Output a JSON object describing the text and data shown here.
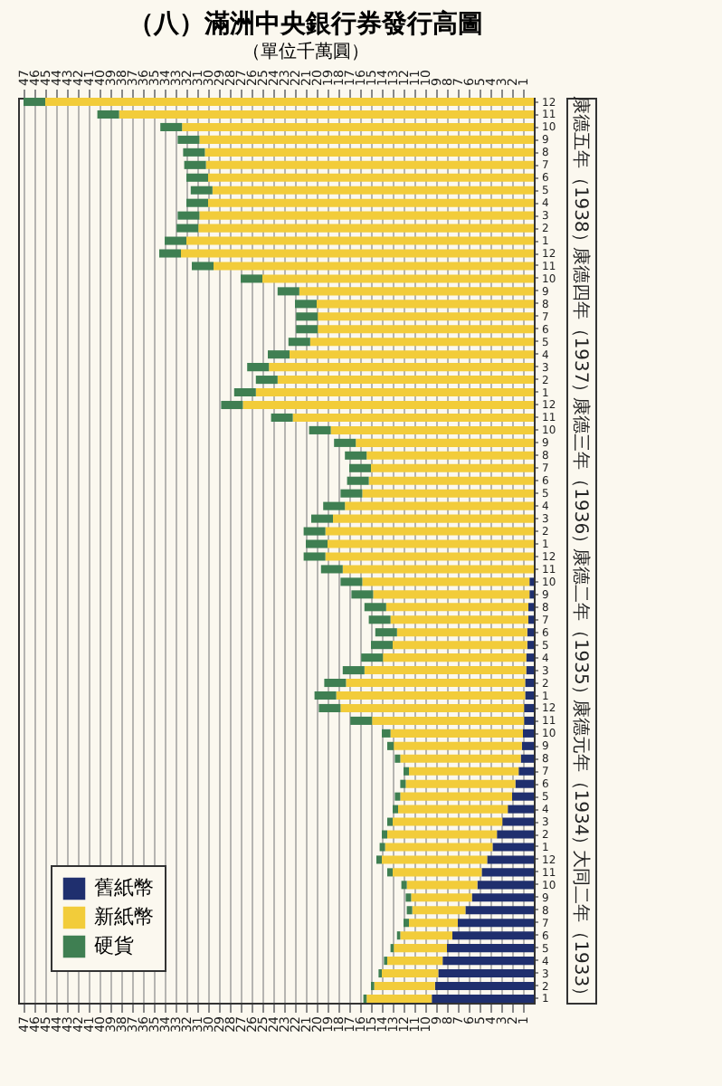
{
  "chart_data": {
    "type": "bar",
    "title": "（八）滿洲中央銀行券發行高圖",
    "subtitle": "（單位千萬圓）",
    "orientation": "horizontal",
    "stacked": true,
    "grid": "x",
    "legend": "bottom left",
    "categories": [
      "12",
      "11",
      "10",
      "9",
      "8",
      "7",
      "6",
      "5",
      "4",
      "3",
      "2",
      "1",
      "12",
      "11",
      "10",
      "9",
      "8",
      "7",
      "6",
      "5",
      "4",
      "3",
      "2",
      "1",
      "12",
      "11",
      "10",
      "9",
      "8",
      "7",
      "6",
      "5",
      "4",
      "3",
      "2",
      "1",
      "12",
      "11",
      "10",
      "9",
      "8",
      "7",
      "6",
      "5",
      "4",
      "3",
      "2",
      "1",
      "12",
      "11",
      "10",
      "9",
      "8",
      "7",
      "6",
      "5",
      "4",
      "3",
      "2",
      "1",
      "12",
      "11",
      "10",
      "9",
      "8",
      "7",
      "6",
      "5",
      "4",
      "3",
      "2",
      "1"
    ],
    "series": [
      {
        "name": "舊紙幣",
        "color": "#1f2f6e",
        "values": [
          null,
          null,
          null,
          null,
          null,
          null,
          null,
          null,
          null,
          null,
          null,
          null,
          null,
          null,
          null,
          null,
          null,
          null,
          null,
          null,
          null,
          null,
          null,
          null,
          null,
          null,
          null,
          null,
          null,
          null,
          null,
          null,
          null,
          null,
          null,
          null,
          null,
          null,
          0.4,
          0.4,
          0.5,
          0.5,
          0.6,
          0.6,
          0.7,
          0.7,
          0.8,
          0.8,
          0.9,
          0.9,
          1.0,
          1.1,
          1.2,
          1.4,
          1.7,
          2.0,
          2.4,
          2.9,
          3.4,
          3.8,
          4.3,
          4.8,
          5.2,
          5.7,
          6.3,
          7.0,
          7.5,
          8.0,
          8.4,
          8.8,
          9.1,
          9.4
        ]
      },
      {
        "name": "新紙幣",
        "color": "#f2cc3a",
        "values": [
          45.0,
          38.2,
          32.4,
          30.8,
          30.3,
          30.2,
          30.0,
          29.6,
          30.0,
          30.8,
          30.9,
          32.0,
          32.5,
          29.5,
          25.0,
          21.6,
          20.0,
          19.9,
          19.9,
          20.6,
          22.5,
          24.4,
          23.6,
          25.6,
          26.8,
          22.2,
          18.7,
          16.4,
          15.4,
          15.0,
          15.2,
          15.8,
          17.4,
          18.5,
          19.2,
          19.0,
          19.2,
          17.6,
          15.4,
          14.4,
          13.1,
          12.7,
          12.0,
          12.4,
          13.2,
          14.9,
          16.5,
          17.4,
          16.9,
          14.0,
          12.2,
          11.8,
          11.1,
          10.1,
          10.1,
          10.3,
          10.1,
          10.1,
          10.1,
          9.9,
          9.7,
          8.2,
          6.5,
          5.6,
          4.9,
          4.5,
          4.8,
          4.9,
          5.1,
          5.2,
          5.6,
          6.0
        ]
      },
      {
        "name": "硬貨",
        "color": "#3f7f52",
        "values": [
          2.0,
          2.0,
          2.0,
          2.0,
          2.0,
          2.0,
          2.0,
          2.0,
          2.0,
          2.0,
          2.0,
          2.0,
          2.0,
          2.0,
          2.0,
          2.0,
          2.0,
          2.0,
          2.0,
          2.0,
          2.0,
          2.0,
          2.0,
          2.0,
          2.0,
          2.0,
          2.0,
          2.0,
          2.0,
          2.0,
          2.0,
          2.0,
          2.0,
          2.0,
          2.0,
          2.0,
          2.0,
          2.0,
          2.0,
          2.0,
          2.0,
          2.0,
          2.0,
          2.0,
          2.0,
          2.0,
          2.0,
          2.0,
          2.0,
          2.0,
          0.8,
          0.6,
          0.5,
          0.5,
          0.5,
          0.5,
          0.5,
          0.5,
          0.5,
          0.5,
          0.5,
          0.5,
          0.5,
          0.5,
          0.5,
          0.5,
          0.3,
          0.3,
          0.3,
          0.3,
          0.3,
          0.3
        ]
      }
    ],
    "xlim": [
      47.5,
      0
    ],
    "xticks": [
      1,
      2,
      3,
      4,
      5,
      6,
      7,
      8,
      9,
      10,
      11,
      12,
      13,
      14,
      15,
      16,
      17,
      18,
      19,
      20,
      21,
      22,
      23,
      24,
      25,
      26,
      27,
      28,
      29,
      30,
      31,
      32,
      33,
      34,
      35,
      36,
      37,
      38,
      39,
      40,
      41,
      42,
      43,
      44,
      45,
      46,
      47
    ],
    "x2lim": [
      47.5,
      0
    ],
    "x2ticks": [
      1,
      2,
      3,
      4,
      5,
      6,
      7,
      8,
      9,
      10,
      11,
      12,
      13,
      14,
      15,
      16,
      17,
      18,
      19,
      20,
      21,
      22,
      23,
      24,
      25,
      26,
      27,
      28,
      29,
      30,
      31,
      32,
      33,
      34,
      35,
      36,
      37,
      38,
      39,
      40,
      41,
      42,
      43,
      44,
      45,
      46,
      47
    ],
    "annotations": [
      "康德五年（1938）",
      "康德四年（1937）",
      "康德三年（1936）",
      "康德二年（1935）",
      "康德元年（1934）",
      "大同二年（1933）"
    ]
  }
}
